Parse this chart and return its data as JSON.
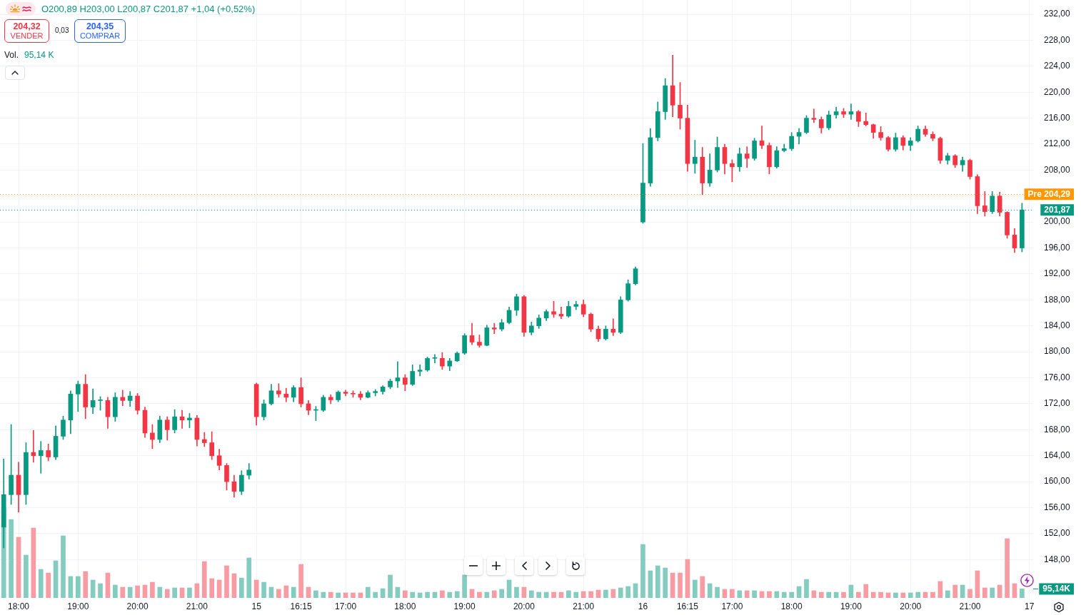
{
  "chart_data": {
    "type": "candlestick",
    "categories": [
      null,
      null,
      "18:00",
      null,
      null,
      null,
      null,
      null,
      null,
      null,
      "19:00",
      null,
      null,
      null,
      null,
      null,
      null,
      null,
      "20:00",
      null,
      null,
      null,
      null,
      null,
      null,
      null,
      "21:00",
      null,
      null,
      null,
      null,
      null,
      null,
      null,
      "15",
      null,
      null,
      null,
      null,
      null,
      "16:15",
      null,
      null,
      null,
      null,
      null,
      "17:00",
      null,
      null,
      null,
      null,
      null,
      null,
      null,
      "18:00",
      null,
      null,
      null,
      null,
      null,
      null,
      null,
      "19:00",
      null,
      null,
      null,
      null,
      null,
      null,
      null,
      "20:00",
      null,
      null,
      null,
      null,
      null,
      null,
      null,
      "21:00",
      null,
      null,
      null,
      null,
      null,
      null,
      null,
      "16",
      null,
      null,
      null,
      null,
      null,
      "16:15",
      null,
      null,
      null,
      null,
      null,
      "17:00",
      null,
      null,
      null,
      null,
      null,
      null,
      null,
      "18:00",
      null,
      null,
      null,
      null,
      null,
      null,
      null,
      "19:00",
      null,
      null,
      null,
      null,
      null,
      null,
      null,
      "20:00",
      null,
      null,
      null,
      null,
      null,
      null,
      null,
      "21:00",
      null,
      null,
      null,
      null,
      null,
      null,
      null,
      "17"
    ],
    "series": [
      {
        "ohlc": [
          [
            153,
            163.5,
            149.8,
            158
          ],
          [
            158,
            168.8,
            156.5,
            161
          ],
          [
            161,
            163,
            155.3,
            158
          ],
          [
            158,
            166,
            156.5,
            164.5
          ],
          [
            164.5,
            167.9,
            163,
            164
          ],
          [
            164,
            166.2,
            161.3,
            164.8
          ],
          [
            164.8,
            165.8,
            163.2,
            163.8
          ],
          [
            163.8,
            168.6,
            163.4,
            167
          ],
          [
            167,
            170.1,
            166.5,
            169.5
          ],
          [
            169.5,
            174,
            167.4,
            173.5
          ],
          [
            173.5,
            175.5,
            170.8,
            175
          ],
          [
            175,
            176.5,
            169.7,
            171.5
          ],
          [
            171.5,
            174.3,
            170.5,
            172.5
          ],
          [
            172.5,
            173.1,
            171,
            172.5
          ],
          [
            172.5,
            173,
            168.2,
            170
          ],
          [
            170,
            173.7,
            169.3,
            173
          ],
          [
            173,
            174.1,
            171.7,
            172.5
          ],
          [
            172.5,
            173.9,
            171.6,
            173.2
          ],
          [
            173.2,
            173.6,
            170.4,
            171
          ],
          [
            171,
            171.5,
            166.8,
            167.5
          ],
          [
            167.5,
            168.8,
            165.1,
            166.5
          ],
          [
            166.5,
            170.1,
            166,
            169.5
          ],
          [
            169.5,
            170,
            166.4,
            168
          ],
          [
            168,
            171.1,
            167.5,
            170
          ],
          [
            170,
            171,
            168.2,
            169.5
          ],
          [
            169.5,
            170.5,
            168.3,
            169.8
          ],
          [
            169.8,
            170.2,
            165.5,
            166.5
          ],
          [
            166.5,
            167.6,
            165.4,
            166
          ],
          [
            166,
            167.7,
            163.4,
            164
          ],
          [
            164,
            165,
            161.8,
            162.5
          ],
          [
            162.5,
            162.8,
            158.7,
            160
          ],
          [
            160,
            161,
            157.6,
            158.5
          ],
          [
            158.5,
            161.7,
            158,
            161
          ],
          [
            161,
            162.8,
            160.4,
            161.8
          ],
          [
            175,
            175.2,
            168.7,
            170
          ],
          [
            170,
            172.6,
            169.5,
            172
          ],
          [
            172,
            175,
            171.8,
            174
          ],
          [
            174,
            175.1,
            173,
            173.5
          ],
          [
            173.5,
            174.4,
            172.3,
            173
          ],
          [
            173,
            174.8,
            172.3,
            174.5
          ],
          [
            174.5,
            176,
            171.5,
            172
          ],
          [
            172,
            172.5,
            170.3,
            171
          ],
          [
            171,
            171.6,
            169.4,
            171
          ],
          [
            171,
            173.3,
            170.8,
            173
          ],
          [
            173,
            173.4,
            172,
            172.6
          ],
          [
            172.6,
            174,
            172.3,
            173.8
          ],
          [
            173.8,
            174.1,
            173.2,
            173.6
          ],
          [
            173.6,
            174,
            173,
            173.5
          ],
          [
            173.5,
            173.9,
            172.6,
            173
          ],
          [
            173,
            174,
            172.9,
            173.7
          ],
          [
            173.7,
            174.2,
            173.2,
            173.9
          ],
          [
            173.9,
            174.8,
            173.5,
            174.6
          ],
          [
            174.6,
            175.8,
            174.3,
            175.5
          ],
          [
            175.5,
            178.5,
            174.5,
            176
          ],
          [
            176,
            176.5,
            174,
            175
          ],
          [
            175,
            178,
            174.8,
            177
          ],
          [
            177,
            178,
            176.3,
            177.2
          ],
          [
            177.2,
            179.2,
            177,
            179
          ],
          [
            179,
            179.6,
            178.3,
            179
          ],
          [
            179,
            179.9,
            177.3,
            177.8
          ],
          [
            177.8,
            179,
            177.1,
            178.6
          ],
          [
            178.6,
            180,
            178.5,
            179.8
          ],
          [
            179.8,
            182.8,
            179.6,
            182.5
          ],
          [
            182.5,
            184.4,
            181.1,
            181.5
          ],
          [
            181.5,
            182.6,
            180.7,
            181
          ],
          [
            181,
            184.1,
            180.9,
            183.7
          ],
          [
            183.7,
            184.4,
            182.8,
            183.5
          ],
          [
            183.5,
            185,
            183.2,
            184.5
          ],
          [
            184.5,
            186.9,
            184.3,
            186.4
          ],
          [
            186.4,
            188.9,
            185.6,
            188.5
          ],
          [
            188.5,
            188.7,
            182.4,
            183
          ],
          [
            183,
            184.6,
            182.6,
            184
          ],
          [
            184,
            185.7,
            183.6,
            185.2
          ],
          [
            185.2,
            186.5,
            184.8,
            186.2
          ],
          [
            186.2,
            187.8,
            185.3,
            185.8
          ],
          [
            185.8,
            186.9,
            185.1,
            185.5
          ],
          [
            185.5,
            187.8,
            185.3,
            187
          ],
          [
            187,
            187.8,
            186.5,
            187.3
          ],
          [
            187.3,
            188,
            185.4,
            185.8
          ],
          [
            185.8,
            186,
            183.1,
            183.5
          ],
          [
            183.5,
            184,
            181.6,
            182
          ],
          [
            182,
            184,
            181.8,
            183.5
          ],
          [
            183.5,
            185.1,
            182.5,
            183
          ],
          [
            183,
            188.5,
            182.8,
            188
          ],
          [
            188,
            191.1,
            187.8,
            190.5
          ],
          [
            190.5,
            193.1,
            190.3,
            192.8
          ],
          [
            200,
            212.1,
            199.8,
            206
          ],
          [
            206,
            214.4,
            205.5,
            213
          ],
          [
            213,
            218.5,
            212.5,
            217
          ],
          [
            217,
            222.1,
            215.8,
            221
          ],
          [
            221,
            225.7,
            216.2,
            218
          ],
          [
            218,
            221.5,
            214.3,
            216
          ],
          [
            216,
            218,
            207.8,
            209
          ],
          [
            209,
            212.6,
            207.5,
            210
          ],
          [
            210,
            211.5,
            204.2,
            206
          ],
          [
            206,
            210.5,
            205.5,
            208
          ],
          [
            208,
            213.1,
            207.7,
            211.5
          ],
          [
            211.5,
            212,
            207.4,
            209
          ],
          [
            209,
            209.6,
            206.2,
            208.5
          ],
          [
            208.5,
            211.4,
            207.8,
            210.5
          ],
          [
            210.5,
            211.6,
            208.4,
            209.8
          ],
          [
            209.8,
            212.9,
            209.5,
            212.5
          ],
          [
            212.5,
            214.8,
            211.3,
            211.8
          ],
          [
            211.8,
            212.2,
            207.4,
            208.5
          ],
          [
            208.5,
            211.6,
            208.3,
            211
          ],
          [
            211,
            212,
            210.8,
            211.3
          ],
          [
            211.3,
            213.8,
            211,
            213.2
          ],
          [
            213.2,
            214.4,
            212,
            213.8
          ],
          [
            213.8,
            216.4,
            213.6,
            216
          ],
          [
            216,
            217.4,
            215.3,
            215.8
          ],
          [
            215.8,
            216.2,
            213.7,
            214.5
          ],
          [
            214.5,
            217.1,
            214.2,
            216.5
          ],
          [
            216.5,
            217.7,
            216,
            217
          ],
          [
            217,
            217.5,
            216.1,
            216.6
          ],
          [
            216.6,
            218.2,
            215.8,
            217
          ],
          [
            217,
            217.2,
            214.7,
            215.5
          ],
          [
            215.5,
            216.8,
            214.8,
            215
          ],
          [
            215,
            215.1,
            212.9,
            213.8
          ],
          [
            213.8,
            214.7,
            212.6,
            213
          ],
          [
            213,
            213.2,
            210.9,
            211.2
          ],
          [
            211.2,
            213.7,
            210.9,
            213
          ],
          [
            213,
            213.3,
            211.1,
            211.8
          ],
          [
            211.8,
            213,
            211,
            212.5
          ],
          [
            212.5,
            214.8,
            212.3,
            214.3
          ],
          [
            214.3,
            214.8,
            213.2,
            213.5
          ],
          [
            213.5,
            213.9,
            212.5,
            212.9
          ],
          [
            212.9,
            213.1,
            209,
            209.5
          ],
          [
            209.5,
            210.6,
            208.9,
            210.2
          ],
          [
            210.2,
            210.4,
            208.4,
            208.8
          ],
          [
            208.8,
            210,
            207.8,
            209.5
          ],
          [
            209.5,
            209.7,
            206.6,
            207
          ],
          [
            207,
            207.3,
            201.3,
            202.5
          ],
          [
            202.5,
            204.7,
            200.9,
            201.6
          ],
          [
            201.6,
            204.7,
            201.3,
            204
          ],
          [
            204,
            204.6,
            200.9,
            201.5
          ],
          [
            201.5,
            201.6,
            197.5,
            198
          ],
          [
            198,
            199,
            195.3,
            196
          ],
          [
            196,
            202.9,
            195.4,
            201.87
          ],
          null
        ],
        "colors": [
          "#089981",
          "#089981",
          "#f23645",
          "#089981",
          "#f23645",
          "#089981",
          "#f23645",
          "#089981",
          "#089981",
          "#089981",
          "#089981",
          "#f23645",
          "#089981",
          "#089981",
          "#f23645",
          "#089981",
          "#f23645",
          "#089981",
          "#f23645",
          "#f23645",
          "#f23645",
          "#089981",
          "#f23645",
          "#089981",
          "#f23645",
          "#089981",
          "#f23645",
          "#f23645",
          "#f23645",
          "#f23645",
          "#f23645",
          "#f23645",
          "#089981",
          "#089981",
          "#f23645",
          "#089981",
          "#089981",
          "#f23645",
          "#f23645",
          "#089981",
          "#f23645",
          "#f23645",
          "#089981",
          "#089981",
          "#f23645",
          "#089981",
          "#f23645",
          "#f23645",
          "#f23645",
          "#089981",
          "#089981",
          "#089981",
          "#089981",
          "#089981",
          "#f23645",
          "#089981",
          "#089981",
          "#089981",
          "#089981",
          "#f23645",
          "#089981",
          "#089981",
          "#089981",
          "#f23645",
          "#f23645",
          "#089981",
          "#f23645",
          "#089981",
          "#089981",
          "#089981",
          "#f23645",
          "#089981",
          "#089981",
          "#089981",
          "#f23645",
          "#f23645",
          "#089981",
          "#089981",
          "#f23645",
          "#f23645",
          "#f23645",
          "#089981",
          "#f23645",
          "#089981",
          "#089981",
          "#089981",
          "#089981",
          "#089981",
          "#089981",
          "#089981",
          "#f23645",
          "#f23645",
          "#f23645",
          "#089981",
          "#f23645",
          "#089981",
          "#089981",
          "#f23645",
          "#f23645",
          "#089981",
          "#f23645",
          "#089981",
          "#f23645",
          "#f23645",
          "#089981",
          "#089981",
          "#089981",
          "#089981",
          "#089981",
          "#f23645",
          "#f23645",
          "#089981",
          "#089981",
          "#f23645",
          "#089981",
          "#f23645",
          "#f23645",
          "#f23645",
          "#f23645",
          "#f23645",
          "#089981",
          "#f23645",
          "#089981",
          "#089981",
          "#f23645",
          "#f23645",
          "#f23645",
          "#089981",
          "#f23645",
          "#089981",
          "#f23645",
          "#f23645",
          "#f23645",
          "#089981",
          "#f23645",
          "#f23645",
          "#f23645",
          "#089981",
          null
        ]
      },
      {
        "type": "bar",
        "axis": "y2",
        "values": [
          944,
          830,
          642,
          453,
          740,
          302,
          264,
          393,
          657,
          227,
          227,
          279,
          189,
          151,
          264,
          136,
          113,
          113,
          128,
          136,
          166,
          113,
          91,
          106,
          106,
          106,
          151,
          385,
          204,
          189,
          340,
          257,
          211,
          423,
          189,
          166,
          113,
          91,
          128,
          113,
          355,
          113,
          76,
          60,
          60,
          53,
          53,
          53,
          53,
          113,
          60,
          98,
          242,
          113,
          76,
          60,
          53,
          60,
          60,
          76,
          60,
          68,
          242,
          91,
          60,
          60,
          76,
          91,
          189,
          113,
          113,
          76,
          60,
          60,
          60,
          60,
          76,
          60,
          68,
          68,
          83,
          83,
          91,
          106,
          121,
          151,
          566,
          287,
          340,
          317,
          264,
          264,
          408,
          189,
          227,
          151,
          113,
          91,
          91,
          76,
          76,
          76,
          68,
          68,
          68,
          60,
          60,
          121,
          196,
          76,
          60,
          60,
          60,
          60,
          136,
          60,
          143,
          60,
          60,
          53,
          53,
          53,
          53,
          60,
          60,
          60,
          174,
          76,
          136,
          136,
          91,
          287,
          106,
          106,
          136,
          627,
          151,
          95.14,
          null
        ],
        "colors": [
          "#84ccc0",
          "#84ccc0",
          "#f89ba2",
          "#84ccc0",
          "#f89ba2",
          "#84ccc0",
          "#f89ba2",
          "#84ccc0",
          "#84ccc0",
          "#84ccc0",
          "#84ccc0",
          "#f89ba2",
          "#84ccc0",
          "#84ccc0",
          "#f89ba2",
          "#84ccc0",
          "#f89ba2",
          "#84ccc0",
          "#f89ba2",
          "#f89ba2",
          "#f89ba2",
          "#84ccc0",
          "#f89ba2",
          "#84ccc0",
          "#f89ba2",
          "#84ccc0",
          "#f89ba2",
          "#f89ba2",
          "#f89ba2",
          "#f89ba2",
          "#f89ba2",
          "#f89ba2",
          "#84ccc0",
          "#84ccc0",
          "#f89ba2",
          "#84ccc0",
          "#84ccc0",
          "#f89ba2",
          "#f89ba2",
          "#84ccc0",
          "#f89ba2",
          "#f89ba2",
          "#84ccc0",
          "#84ccc0",
          "#f89ba2",
          "#84ccc0",
          "#f89ba2",
          "#f89ba2",
          "#f89ba2",
          "#84ccc0",
          "#84ccc0",
          "#84ccc0",
          "#84ccc0",
          "#84ccc0",
          "#f89ba2",
          "#84ccc0",
          "#84ccc0",
          "#84ccc0",
          "#84ccc0",
          "#f89ba2",
          "#84ccc0",
          "#84ccc0",
          "#84ccc0",
          "#f89ba2",
          "#f89ba2",
          "#84ccc0",
          "#f89ba2",
          "#84ccc0",
          "#84ccc0",
          "#84ccc0",
          "#f89ba2",
          "#84ccc0",
          "#84ccc0",
          "#84ccc0",
          "#f89ba2",
          "#f89ba2",
          "#84ccc0",
          "#84ccc0",
          "#f89ba2",
          "#f89ba2",
          "#f89ba2",
          "#84ccc0",
          "#f89ba2",
          "#84ccc0",
          "#84ccc0",
          "#84ccc0",
          "#84ccc0",
          "#84ccc0",
          "#84ccc0",
          "#84ccc0",
          "#f89ba2",
          "#f89ba2",
          "#f89ba2",
          "#84ccc0",
          "#f89ba2",
          "#84ccc0",
          "#84ccc0",
          "#f89ba2",
          "#f89ba2",
          "#84ccc0",
          "#f89ba2",
          "#84ccc0",
          "#f89ba2",
          "#f89ba2",
          "#84ccc0",
          "#84ccc0",
          "#84ccc0",
          "#84ccc0",
          "#84ccc0",
          "#f89ba2",
          "#f89ba2",
          "#84ccc0",
          "#84ccc0",
          "#f89ba2",
          "#84ccc0",
          "#f89ba2",
          "#f89ba2",
          "#f89ba2",
          "#f89ba2",
          "#f89ba2",
          "#84ccc0",
          "#f89ba2",
          "#84ccc0",
          "#84ccc0",
          "#f89ba2",
          "#f89ba2",
          "#f89ba2",
          "#84ccc0",
          "#f89ba2",
          "#84ccc0",
          "#f89ba2",
          "#f89ba2",
          "#f89ba2",
          "#84ccc0",
          "#f89ba2",
          "#f89ba2",
          "#f89ba2",
          "#84ccc0",
          null
        ]
      }
    ],
    "ylim": [
      142.1,
      234.2
    ],
    "yticks": [
      {
        "value": 148,
        "label": "148,00"
      },
      {
        "value": 152,
        "label": "152,00"
      },
      {
        "value": 156,
        "label": "156,00"
      },
      {
        "value": 160,
        "label": "160,00"
      },
      {
        "value": 164,
        "label": "164,00"
      },
      {
        "value": 168,
        "label": "168,00"
      },
      {
        "value": 172,
        "label": "172,00"
      },
      {
        "value": 176,
        "label": "176,00"
      },
      {
        "value": 180,
        "label": "180,00"
      },
      {
        "value": 184,
        "label": "184,00"
      },
      {
        "value": 188,
        "label": "188,00"
      },
      {
        "value": 192,
        "label": "192,00"
      },
      {
        "value": 196,
        "label": "196,00"
      },
      {
        "value": 200,
        "label": "200,00"
      },
      {
        "value": 204,
        "label": null
      },
      {
        "value": 208,
        "label": "208,00"
      },
      {
        "value": 212,
        "label": "212,00"
      },
      {
        "value": 216,
        "label": "216,00"
      },
      {
        "value": 220,
        "label": "220,00"
      },
      {
        "value": 224,
        "label": "224,00"
      },
      {
        "value": 228,
        "label": "228,00"
      },
      {
        "value": 232,
        "label": "232,00"
      }
    ],
    "y2lim": [
      0,
      6330
    ],
    "y2ticks": [
      {
        "value": 95.14,
        "label": "95,14K"
      }
    ],
    "grid": true,
    "ref_lines": [
      {
        "axis": "y",
        "value": 204.29,
        "label": "Pre 204,29",
        "color": "#ff9800",
        "line_style": "dotted"
      },
      {
        "axis": "y",
        "value": 201.87,
        "label": "201,87",
        "color": "#089981",
        "line_style": "dotted"
      }
    ],
    "annotations": [
      "O200,89 H203,00 L200,87 C201,87 +1,04 (+0,52%)",
      "204,32",
      "VENDER",
      "0,03",
      "204,35",
      "COMPRAR",
      "Vol.",
      "95,14 K"
    ]
  }
}
